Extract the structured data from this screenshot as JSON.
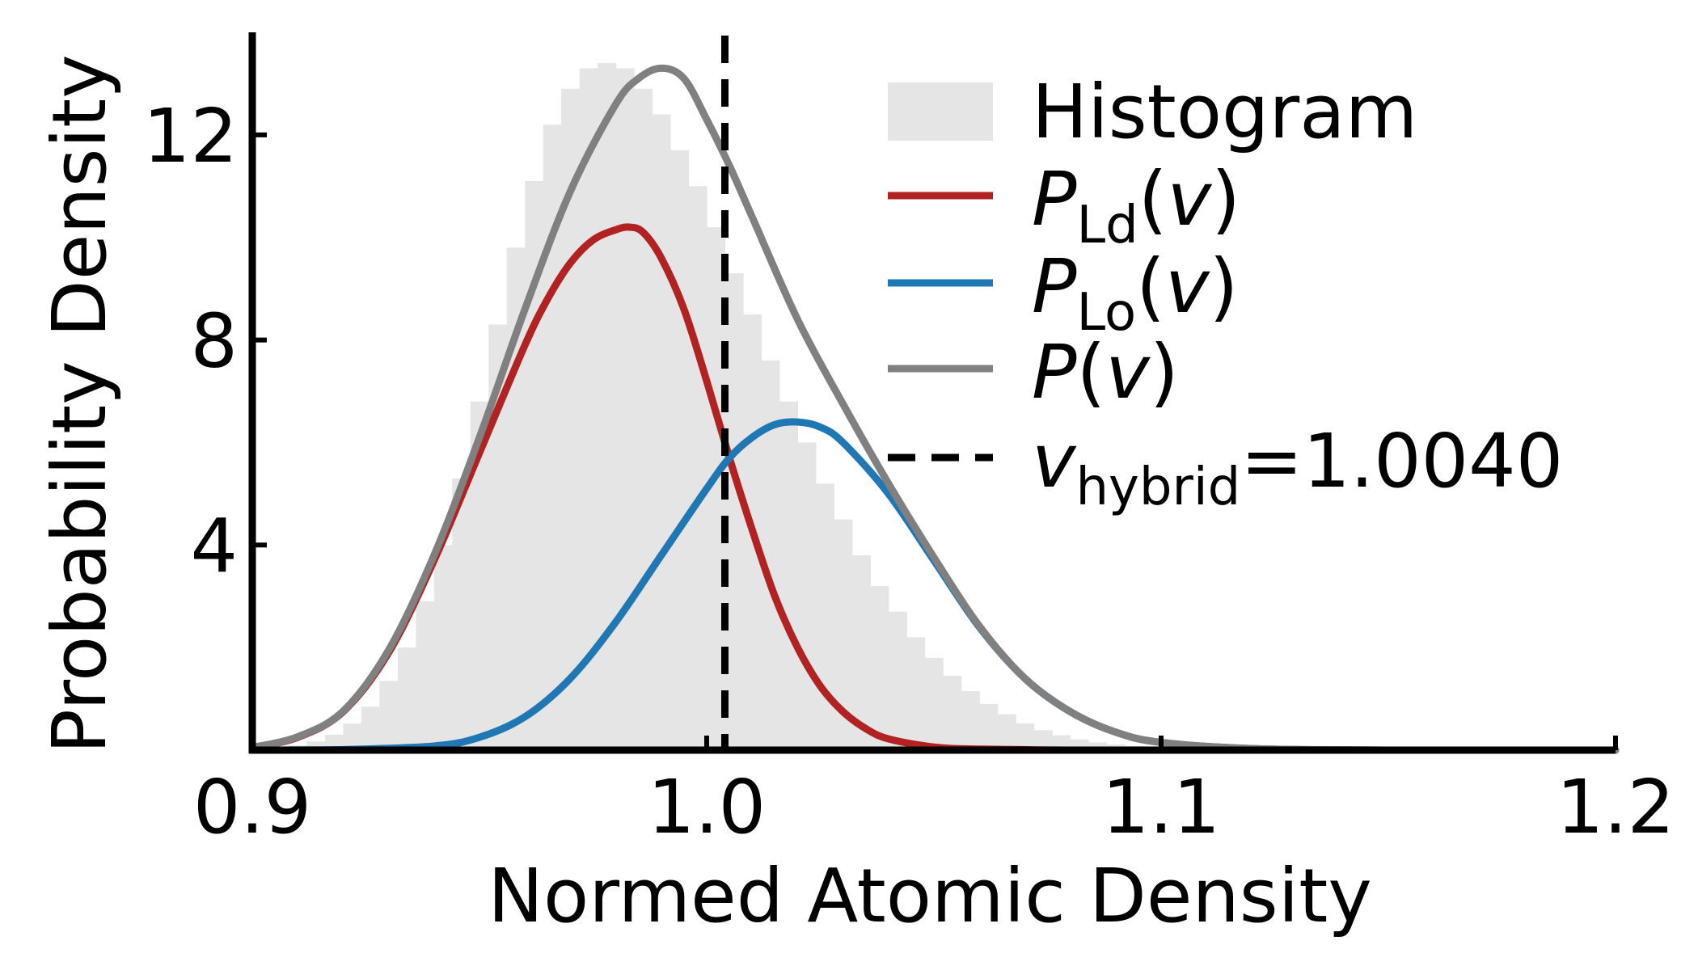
{
  "chart_data": {
    "type": "area",
    "xlabel": "Normed Atomic Density",
    "ylabel": "Probability Density",
    "xlim": [
      0.9,
      1.2
    ],
    "ylim": [
      0,
      14
    ],
    "xticks": [
      0.9,
      1.0,
      1.1,
      1.2
    ],
    "xtick_labels": [
      "0.9",
      "1.0",
      "1.1",
      "1.2"
    ],
    "yticks": [
      4,
      8,
      12
    ],
    "ytick_labels": [
      "4",
      "8",
      "12"
    ],
    "grid": false,
    "legend_position": "upper-right",
    "histogram": {
      "label": "Histogram",
      "color": "#e5e5e5",
      "bin_width": 0.004,
      "x": [
        0.9,
        0.904,
        0.908,
        0.912,
        0.916,
        0.92,
        0.924,
        0.928,
        0.932,
        0.936,
        0.94,
        0.944,
        0.948,
        0.952,
        0.956,
        0.96,
        0.964,
        0.968,
        0.972,
        0.976,
        0.98,
        0.984,
        0.988,
        0.992,
        0.996,
        1.0,
        1.004,
        1.008,
        1.012,
        1.016,
        1.02,
        1.024,
        1.028,
        1.032,
        1.036,
        1.04,
        1.044,
        1.048,
        1.052,
        1.056,
        1.06,
        1.064,
        1.068,
        1.072,
        1.076,
        1.08,
        1.084,
        1.088,
        1.092,
        1.096,
        1.1,
        1.104,
        1.108,
        1.112,
        1.116,
        1.12,
        1.124,
        1.128,
        1.132,
        1.136,
        1.14,
        1.144,
        1.148,
        1.152,
        1.156
      ],
      "values": [
        0.02,
        0.05,
        0.09,
        0.17,
        0.3,
        0.52,
        0.85,
        1.35,
        2.0,
        2.9,
        4.0,
        5.3,
        6.8,
        8.3,
        9.8,
        11.1,
        12.2,
        12.9,
        13.3,
        13.4,
        13.3,
        12.9,
        12.4,
        11.7,
        11.0,
        10.2,
        9.3,
        8.5,
        7.6,
        6.8,
        6.0,
        5.2,
        4.5,
        3.8,
        3.2,
        2.7,
        2.2,
        1.8,
        1.45,
        1.15,
        0.9,
        0.7,
        0.52,
        0.39,
        0.29,
        0.21,
        0.15,
        0.11,
        0.08,
        0.06,
        0.04,
        0.03,
        0.02,
        0.015,
        0.01,
        0.008,
        0.006,
        0.005,
        0.004,
        0.003,
        0.002,
        0.002,
        0.001,
        0.001,
        0.001
      ]
    },
    "series": [
      {
        "name": "P_Ld(v)",
        "color": "#b22222",
        "x": [
          0.9,
          0.91,
          0.92,
          0.93,
          0.94,
          0.95,
          0.96,
          0.965,
          0.97,
          0.975,
          0.98,
          0.983,
          0.986,
          0.99,
          0.995,
          1.0,
          1.005,
          1.01,
          1.015,
          1.02,
          1.025,
          1.03,
          1.035,
          1.04,
          1.05,
          1.06,
          1.08,
          1.1,
          1.15,
          1.2
        ],
        "y": [
          0.05,
          0.25,
          0.75,
          1.9,
          3.7,
          5.8,
          7.9,
          8.8,
          9.5,
          9.95,
          10.15,
          10.2,
          10.1,
          9.6,
          8.6,
          7.2,
          5.7,
          4.3,
          3.0,
          2.0,
          1.25,
          0.75,
          0.42,
          0.22,
          0.06,
          0.02,
          0.0,
          0.0,
          0.0,
          0.0
        ]
      },
      {
        "name": "P_Lo(v)",
        "color": "#1f77b4",
        "x": [
          0.9,
          0.92,
          0.94,
          0.95,
          0.96,
          0.97,
          0.98,
          0.99,
          1.0,
          1.005,
          1.01,
          1.015,
          1.02,
          1.025,
          1.03,
          1.04,
          1.05,
          1.06,
          1.07,
          1.08,
          1.09,
          1.1,
          1.12,
          1.15,
          1.2
        ],
        "y": [
          0.0,
          0.01,
          0.08,
          0.25,
          0.65,
          1.4,
          2.5,
          3.8,
          5.1,
          5.7,
          6.1,
          6.35,
          6.4,
          6.3,
          6.0,
          5.0,
          3.7,
          2.4,
          1.4,
          0.75,
          0.35,
          0.15,
          0.03,
          0.0,
          0.0
        ]
      },
      {
        "name": "P(v)",
        "color": "#808080",
        "x": [
          0.9,
          0.91,
          0.92,
          0.93,
          0.94,
          0.95,
          0.96,
          0.97,
          0.98,
          0.985,
          0.99,
          0.995,
          1.0,
          1.005,
          1.01,
          1.02,
          1.03,
          1.04,
          1.05,
          1.06,
          1.07,
          1.08,
          1.09,
          1.1,
          1.12,
          1.15,
          1.2
        ],
        "y": [
          0.05,
          0.26,
          0.76,
          1.95,
          3.8,
          6.1,
          8.6,
          10.9,
          12.6,
          13.1,
          13.3,
          13.1,
          12.3,
          11.4,
          10.4,
          8.4,
          6.75,
          5.2,
          3.76,
          2.42,
          1.4,
          0.75,
          0.35,
          0.15,
          0.03,
          0.0,
          0.0
        ]
      }
    ],
    "vline": {
      "name": "v_hybrid=1.0040",
      "x": 1.004,
      "color": "#000000",
      "style": "dashed"
    },
    "legend": [
      {
        "kind": "patch",
        "color": "#e5e5e5",
        "text": "Histogram"
      },
      {
        "kind": "line",
        "color": "#b22222",
        "symbol": "P",
        "sub": "Ld",
        "arg": "(v)"
      },
      {
        "kind": "line",
        "color": "#1f77b4",
        "symbol": "P",
        "sub": "Lo",
        "arg": "(v)"
      },
      {
        "kind": "line",
        "color": "#808080",
        "symbol": "P",
        "sub": "",
        "arg": "(v)"
      },
      {
        "kind": "dashed",
        "color": "#000000",
        "symbol": "v",
        "sub": "hybrid",
        "arg": "=1.0040"
      }
    ]
  }
}
